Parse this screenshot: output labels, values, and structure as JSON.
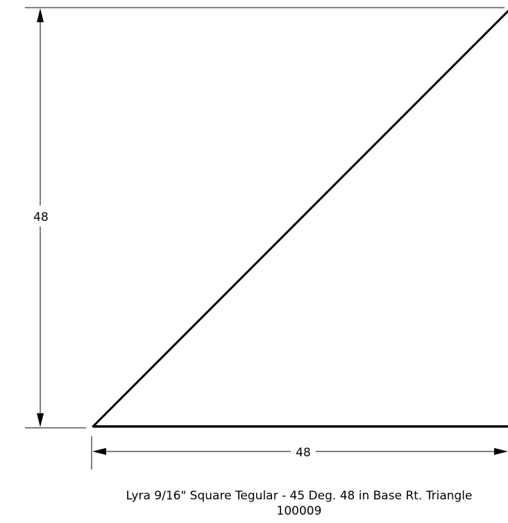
{
  "drawing": {
    "dimensions": {
      "height_label": "48",
      "base_label": "48"
    },
    "caption": {
      "title": "Lyra 9/16\" Square Tegular - 45 Deg. 48 in Base Rt. Triangle",
      "code": "100009"
    },
    "colors": {
      "line": "#000000",
      "background": "#ffffff"
    }
  }
}
